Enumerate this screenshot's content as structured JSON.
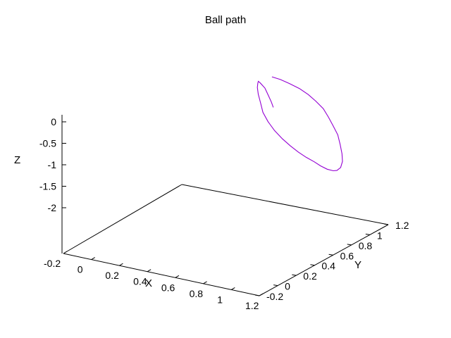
{
  "chart_data": {
    "type": "line",
    "title": "Ball path",
    "xlabel": "X",
    "ylabel": "Y",
    "zlabel": "Z",
    "x_ticks": [
      "-0.2",
      "0",
      "0.2",
      "0.4",
      "0.6",
      "0.8",
      "1",
      "1.2"
    ],
    "y_ticks": [
      "-0.2",
      "0",
      "0.2",
      "0.4",
      "0.6",
      "0.8",
      "1",
      "1.2"
    ],
    "z_ticks": [
      "0",
      "-0.5",
      "-1",
      "-1.5",
      "-2"
    ],
    "xlim": [
      -0.2,
      1.2
    ],
    "ylim": [
      -0.2,
      1.2
    ],
    "zlim": [
      -2.2,
      0.2
    ],
    "grid": false,
    "series_color": "#9400d3",
    "series": [
      {
        "x": [
          0.5,
          0.56,
          0.63,
          0.71,
          0.78,
          0.84,
          0.9,
          0.95,
          0.99,
          1.03,
          1.06,
          1.08,
          1.09,
          1.09,
          1.07,
          1.05,
          1.02,
          0.98,
          0.94,
          0.89,
          0.84,
          0.79,
          0.74,
          0.69,
          0.65,
          0.62,
          0.61,
          0.6,
          0.6,
          0.61,
          0.62,
          0.64,
          0.68,
          0.71,
          0.74,
          0.76
        ],
        "y": [
          1.0,
          1.0,
          0.99,
          0.98,
          0.97,
          0.96,
          0.95,
          0.93,
          0.92,
          0.91,
          0.89,
          0.88,
          0.87,
          0.85,
          0.84,
          0.83,
          0.81,
          0.8,
          0.79,
          0.78,
          0.77,
          0.76,
          0.75,
          0.74,
          0.73,
          0.72,
          0.71,
          0.7,
          0.69,
          0.68,
          0.67,
          0.66,
          0.65,
          0.64,
          0.63,
          0.62
        ],
        "z": [
          0.12,
          0.1,
          0.07,
          0.02,
          -0.06,
          -0.16,
          -0.28,
          -0.42,
          -0.58,
          -0.75,
          -0.93,
          -1.12,
          -1.28,
          -1.4,
          -1.47,
          -1.48,
          -1.44,
          -1.38,
          -1.3,
          -1.22,
          -1.12,
          -1.0,
          -0.86,
          -0.69,
          -0.5,
          -0.29,
          -0.07,
          0.14,
          0.31,
          0.43,
          0.49,
          0.48,
          0.4,
          0.27,
          0.14,
          0.04
        ]
      }
    ]
  }
}
